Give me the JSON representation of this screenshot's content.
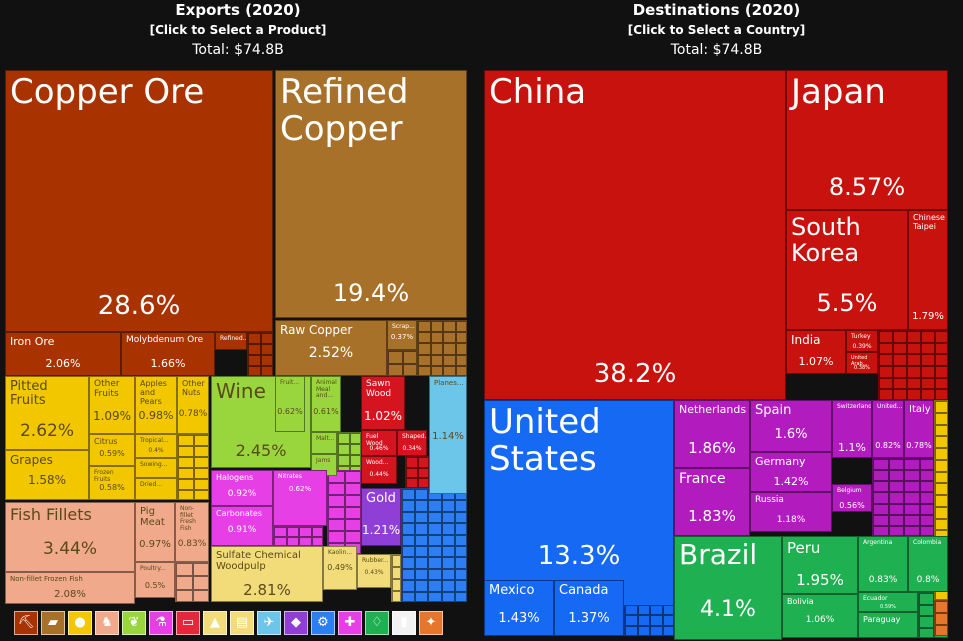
{
  "left_header": {
    "title": "Exports (2020)",
    "subtitle": "[Click to Select a Product]",
    "total": "Total: $74.8B"
  },
  "right_header": {
    "title": "Destinations (2020)",
    "subtitle": "[Click to Select a Country]",
    "total": "Total: $74.8B"
  },
  "chart_data": [
    {
      "type": "treemap",
      "title": "Exports (2020)",
      "items": [
        {
          "name": "Copper Ore",
          "value": 28.6,
          "label": "28.6%",
          "color": "#a83300"
        },
        {
          "name": "Refined Copper",
          "value": 19.4,
          "label": "19.4%",
          "color": "#a8712a"
        },
        {
          "name": "Raw Copper",
          "value": 2.52,
          "label": "2.52%",
          "color": "#a8712a"
        },
        {
          "name": "Scrap...",
          "value": 0.37,
          "label": "0.37%",
          "color": "#a8712a"
        },
        {
          "name": "Iron Ore",
          "value": 2.06,
          "label": "2.06%",
          "color": "#a83300"
        },
        {
          "name": "Molybdenum Ore",
          "value": 1.66,
          "label": "1.66%",
          "color": "#a83300"
        },
        {
          "name": "Refined...",
          "value": 0.5,
          "label": "",
          "color": "#a83300"
        },
        {
          "name": "Pitted Fruits",
          "value": 2.62,
          "label": "2.62%",
          "color": "#f2c700"
        },
        {
          "name": "Grapes",
          "value": 1.58,
          "label": "1.58%",
          "color": "#f2c700"
        },
        {
          "name": "Other Fruits",
          "value": 1.09,
          "label": "1.09%",
          "color": "#f2c700"
        },
        {
          "name": "Apples and Pears",
          "value": 0.98,
          "label": "0.98%",
          "color": "#f2c700"
        },
        {
          "name": "Other Nuts",
          "value": 0.78,
          "label": "0.78%",
          "color": "#f2c700"
        },
        {
          "name": "Citrus",
          "value": 0.59,
          "label": "0.59%",
          "color": "#f2c700"
        },
        {
          "name": "Frozen Fruits",
          "value": 0.58,
          "label": "0.58%",
          "color": "#f2c700"
        },
        {
          "name": "Tropical...",
          "value": 0.4,
          "label": "0.4%",
          "color": "#f2c700"
        },
        {
          "name": "Sowing...",
          "value": 0.3,
          "label": "",
          "color": "#f2c700"
        },
        {
          "name": "Dried...",
          "value": 0.3,
          "label": "",
          "color": "#f2c700"
        },
        {
          "name": "Fish Fillets",
          "value": 3.44,
          "label": "3.44%",
          "color": "#f0a98a"
        },
        {
          "name": "Non-fillet Frozen Fish",
          "value": 2.08,
          "label": "2.08%",
          "color": "#f0a98a"
        },
        {
          "name": "Pig Meat",
          "value": 0.97,
          "label": "0.97%",
          "color": "#f0a98a"
        },
        {
          "name": "Non-fillet Fresh Fish",
          "value": 0.83,
          "label": "0.83%",
          "color": "#f0a98a"
        },
        {
          "name": "Poultry...",
          "value": 0.5,
          "label": "0.5%",
          "color": "#f0a98a"
        },
        {
          "name": "Wine",
          "value": 2.45,
          "label": "2.45%",
          "color": "#99d63e"
        },
        {
          "name": "Fruit...",
          "value": 0.62,
          "label": "0.62%",
          "color": "#99d63e"
        },
        {
          "name": "Animal Meal and...",
          "value": 0.61,
          "label": "0.61%",
          "color": "#99d63e"
        },
        {
          "name": "Malt...",
          "value": 0.3,
          "label": "",
          "color": "#99d63e"
        },
        {
          "name": "Jams",
          "value": 0.3,
          "label": "",
          "color": "#99d63e"
        },
        {
          "name": "Halogens",
          "value": 0.92,
          "label": "0.92%",
          "color": "#e63fe6"
        },
        {
          "name": "Carbonates",
          "value": 0.91,
          "label": "0.91%",
          "color": "#e63fe6"
        },
        {
          "name": "Nitrates",
          "value": 0.62,
          "label": "0.62%",
          "color": "#e63fe6"
        },
        {
          "name": "Sulfate Chemical Woodpulp",
          "value": 2.81,
          "label": "2.81%",
          "color": "#f2dc7a"
        },
        {
          "name": "Kaolin...",
          "value": 0.49,
          "label": "0.49%",
          "color": "#f2dc7a"
        },
        {
          "name": "Rubber...",
          "value": 0.43,
          "label": "0.43%",
          "color": "#f2dc7a"
        },
        {
          "name": "Sawn Wood",
          "value": 1.02,
          "label": "1.02%",
          "color": "#d4151f"
        },
        {
          "name": "Fuel Wood",
          "value": 0.46,
          "label": "0.46%",
          "color": "#d4151f"
        },
        {
          "name": "Shaped...",
          "value": 0.34,
          "label": "0.34%",
          "color": "#d4151f"
        },
        {
          "name": "Wood...",
          "value": 0.44,
          "label": "0.44%",
          "color": "#d4151f"
        },
        {
          "name": "Planes...",
          "value": 1.14,
          "label": "1.14%",
          "color": "#6cc6ea"
        },
        {
          "name": "Gold",
          "value": 1.21,
          "label": "1.21%",
          "color": "#8f3fd6"
        }
      ]
    },
    {
      "type": "treemap",
      "title": "Destinations (2020)",
      "items": [
        {
          "name": "China",
          "value": 38.2,
          "label": "38.2%",
          "color": "#c8120d"
        },
        {
          "name": "Japan",
          "value": 8.57,
          "label": "8.57%",
          "color": "#c8120d"
        },
        {
          "name": "South Korea",
          "value": 5.5,
          "label": "5.5%",
          "color": "#c8120d"
        },
        {
          "name": "Chinese Taipei",
          "value": 1.79,
          "label": "1.79%",
          "color": "#c8120d"
        },
        {
          "name": "India",
          "value": 1.07,
          "label": "1.07%",
          "color": "#c8120d"
        },
        {
          "name": "Turkey",
          "value": 0.39,
          "label": "0.39%",
          "color": "#c8120d"
        },
        {
          "name": "United Arab...",
          "value": 0.38,
          "label": "0.38%",
          "color": "#c8120d"
        },
        {
          "name": "United States",
          "value": 13.3,
          "label": "13.3%",
          "color": "#1669f2"
        },
        {
          "name": "Mexico",
          "value": 1.43,
          "label": "1.43%",
          "color": "#1669f2"
        },
        {
          "name": "Canada",
          "value": 1.37,
          "label": "1.37%",
          "color": "#1669f2"
        },
        {
          "name": "Netherlands",
          "value": 1.86,
          "label": "1.86%",
          "color": "#b21cbf"
        },
        {
          "name": "Spain",
          "value": 1.6,
          "label": "1.6%",
          "color": "#b21cbf"
        },
        {
          "name": "Germany",
          "value": 1.42,
          "label": "1.42%",
          "color": "#b21cbf"
        },
        {
          "name": "France",
          "value": 1.83,
          "label": "1.83%",
          "color": "#b21cbf"
        },
        {
          "name": "Russia",
          "value": 1.18,
          "label": "1.18%",
          "color": "#b21cbf"
        },
        {
          "name": "Switzerland",
          "value": 1.1,
          "label": "1.1%",
          "color": "#b21cbf"
        },
        {
          "name": "United...",
          "value": 0.82,
          "label": "0.82%",
          "color": "#b21cbf"
        },
        {
          "name": "Italy",
          "value": 0.78,
          "label": "0.78%",
          "color": "#b21cbf"
        },
        {
          "name": "Belgium",
          "value": 0.56,
          "label": "0.56%",
          "color": "#b21cbf"
        },
        {
          "name": "Brazil",
          "value": 4.1,
          "label": "4.1%",
          "color": "#1fb052"
        },
        {
          "name": "Peru",
          "value": 1.95,
          "label": "1.95%",
          "color": "#1fb052"
        },
        {
          "name": "Argentina",
          "value": 0.83,
          "label": "0.83%",
          "color": "#1fb052"
        },
        {
          "name": "Colombia",
          "value": 0.8,
          "label": "0.8%",
          "color": "#1fb052"
        },
        {
          "name": "Ecuador",
          "value": 0.59,
          "label": "0.59%",
          "color": "#1fb052"
        },
        {
          "name": "Bolivia",
          "value": 1.06,
          "label": "1.06%",
          "color": "#1fb052"
        },
        {
          "name": "Paraguay",
          "value": 0.5,
          "label": "",
          "color": "#1fb052"
        }
      ]
    }
  ],
  "icons": [
    {
      "name": "mineral-icon",
      "glyph": "⛏",
      "color": "#a83300"
    },
    {
      "name": "metal-icon",
      "glyph": "▰",
      "color": "#a8712a"
    },
    {
      "name": "vegetable-icon",
      "glyph": "●",
      "color": "#f2c700"
    },
    {
      "name": "animal-icon",
      "glyph": "♞",
      "color": "#f0a98a"
    },
    {
      "name": "foodstuff-icon",
      "glyph": "❦",
      "color": "#99d63e"
    },
    {
      "name": "chemical-icon",
      "glyph": "⚗",
      "color": "#e63fe6"
    },
    {
      "name": "plastic-icon",
      "glyph": "▭",
      "color": "#e6263a"
    },
    {
      "name": "stone-icon",
      "glyph": "▲",
      "color": "#f2dc7a"
    },
    {
      "name": "paper-icon",
      "glyph": "▤",
      "color": "#f2dc7a"
    },
    {
      "name": "transport-icon",
      "glyph": "✈",
      "color": "#6cc6ea"
    },
    {
      "name": "precious-metal-icon",
      "glyph": "◆",
      "color": "#8f3fd6"
    },
    {
      "name": "machine-icon",
      "glyph": "⚙",
      "color": "#2c7ef2"
    },
    {
      "name": "instrument-icon",
      "glyph": "✚",
      "color": "#e63fe6"
    },
    {
      "name": "textile-icon",
      "glyph": "♢",
      "color": "#1fb052"
    },
    {
      "name": "misc-icon",
      "glyph": "▮",
      "color": "#f2f2f2"
    },
    {
      "name": "weapon-icon",
      "glyph": "✦",
      "color": "#e8762a"
    }
  ]
}
